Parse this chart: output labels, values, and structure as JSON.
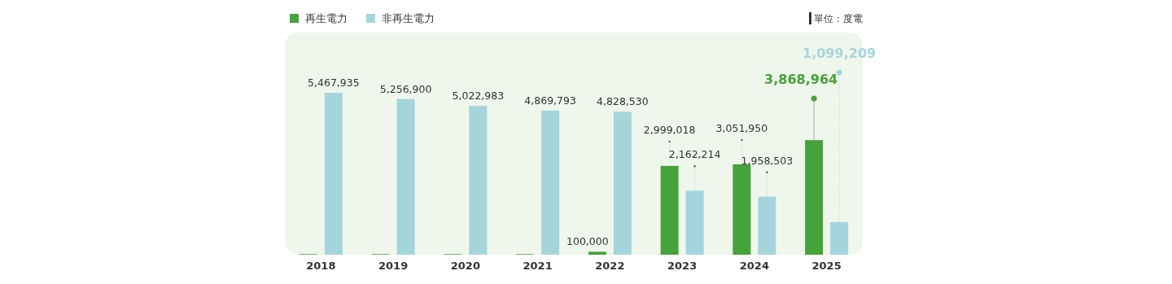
{
  "chart_data": {
    "type": "bar",
    "categories": [
      "2018",
      "2019",
      "2020",
      "2021",
      "2022",
      "2023",
      "2024",
      "2025"
    ],
    "series": [
      {
        "name": "再生電力",
        "color": "#46a23a",
        "values": [
          20000,
          20000,
          20000,
          20000,
          100000,
          2999018,
          3051950,
          3868964
        ],
        "value_labels": [
          null,
          null,
          null,
          null,
          "100,000",
          "2,999,018",
          "3,051,950",
          "3,868,964"
        ]
      },
      {
        "name": "非再生電力",
        "color": "#a5d5dc",
        "values": [
          5467935,
          5256900,
          5022983,
          4869793,
          4828530,
          2162214,
          1958503,
          1099209
        ],
        "value_labels": [
          "5,467,935",
          "5,256,900",
          "5,022,983",
          "4,869,793",
          "4,828,530",
          "2,162,214",
          "1,958,503",
          "1,099,209"
        ]
      }
    ],
    "legend": "top left",
    "annotations": [
      "單位：度電"
    ]
  }
}
